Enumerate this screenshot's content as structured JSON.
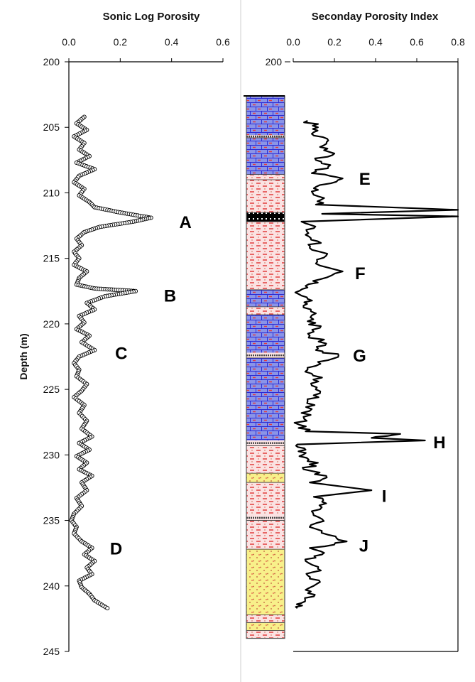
{
  "chart_data": [
    {
      "type": "scatter",
      "title": "Sonic Log Porosity",
      "xlabel": "",
      "ylabel": "Depth (m)",
      "xlim": [
        0,
        0.6
      ],
      "ylim": [
        200,
        245
      ],
      "y_inverted": true,
      "x_ticks": [
        "0.0",
        "0.2",
        "0.4",
        "0.6"
      ],
      "y_ticks": [
        "200",
        "205",
        "210",
        "215",
        "220",
        "225",
        "230",
        "235",
        "240",
        "245"
      ],
      "grid": false,
      "marker": "open-circle",
      "profile": [
        [
          0.06,
          204.2
        ],
        [
          0.03,
          204.7
        ],
        [
          0.07,
          205.2
        ],
        [
          0.02,
          205.7
        ],
        [
          0.06,
          206.2
        ],
        [
          0.04,
          206.7
        ],
        [
          0.08,
          207.2
        ],
        [
          0.03,
          207.7
        ],
        [
          0.1,
          208.2
        ],
        [
          0.04,
          208.7
        ],
        [
          0.02,
          209.2
        ],
        [
          0.06,
          209.7
        ],
        [
          0.04,
          210.2
        ],
        [
          0.08,
          210.7
        ],
        [
          0.1,
          211.1
        ],
        [
          0.2,
          211.5
        ],
        [
          0.32,
          211.9
        ],
        [
          0.25,
          212.2
        ],
        [
          0.12,
          212.6
        ],
        [
          0.06,
          213.0
        ],
        [
          0.03,
          213.5
        ],
        [
          0.05,
          214.0
        ],
        [
          0.02,
          214.5
        ],
        [
          0.04,
          215.0
        ],
        [
          0.02,
          215.5
        ],
        [
          0.07,
          216.0
        ],
        [
          0.04,
          216.5
        ],
        [
          0.03,
          217.0
        ],
        [
          0.1,
          217.3
        ],
        [
          0.26,
          217.5
        ],
        [
          0.14,
          217.9
        ],
        [
          0.07,
          218.4
        ],
        [
          0.1,
          218.9
        ],
        [
          0.04,
          219.4
        ],
        [
          0.06,
          219.9
        ],
        [
          0.03,
          220.4
        ],
        [
          0.08,
          220.9
        ],
        [
          0.05,
          221.4
        ],
        [
          0.1,
          222.0
        ],
        [
          0.04,
          222.5
        ],
        [
          0.02,
          223.0
        ],
        [
          0.04,
          223.5
        ],
        [
          0.03,
          224.0
        ],
        [
          0.07,
          224.6
        ],
        [
          0.05,
          225.1
        ],
        [
          0.02,
          225.6
        ],
        [
          0.06,
          226.2
        ],
        [
          0.04,
          226.8
        ],
        [
          0.07,
          227.4
        ],
        [
          0.05,
          228.0
        ],
        [
          0.09,
          228.6
        ],
        [
          0.04,
          229.1
        ],
        [
          0.08,
          229.6
        ],
        [
          0.03,
          230.1
        ],
        [
          0.07,
          230.6
        ],
        [
          0.04,
          231.1
        ],
        [
          0.09,
          231.6
        ],
        [
          0.05,
          232.1
        ],
        [
          0.07,
          232.7
        ],
        [
          0.03,
          233.3
        ],
        [
          0.05,
          233.9
        ],
        [
          0.02,
          234.5
        ],
        [
          0.01,
          235.0
        ],
        [
          0.03,
          235.5
        ],
        [
          0.02,
          236.0
        ],
        [
          0.05,
          236.6
        ],
        [
          0.09,
          237.1
        ],
        [
          0.06,
          237.6
        ],
        [
          0.1,
          238.1
        ],
        [
          0.07,
          238.6
        ],
        [
          0.09,
          239.1
        ],
        [
          0.04,
          239.6
        ],
        [
          0.05,
          240.1
        ],
        [
          0.08,
          240.6
        ],
        [
          0.1,
          241.1
        ],
        [
          0.15,
          241.7
        ]
      ],
      "annotations": [
        {
          "label": "A",
          "x": 0.43,
          "y": 212.2
        },
        {
          "label": "B",
          "x": 0.37,
          "y": 217.8
        },
        {
          "label": "C",
          "x": 0.18,
          "y": 222.2
        },
        {
          "label": "D",
          "x": 0.16,
          "y": 237.1
        }
      ]
    },
    {
      "type": "line",
      "title": "Seconday Porosity Index",
      "xlabel": "",
      "ylabel": "",
      "xlim": [
        0.0,
        0.8
      ],
      "ylim": [
        200,
        245
      ],
      "y_inverted": true,
      "x_ticks": [
        "0.0",
        "0.2",
        "0.4",
        "0.6",
        "0.8"
      ],
      "y_ticks": [
        "200"
      ],
      "grid": false,
      "profile": [
        [
          0.07,
          204.5
        ],
        [
          0.12,
          205.0
        ],
        [
          0.09,
          205.5
        ],
        [
          0.17,
          206.0
        ],
        [
          0.13,
          206.5
        ],
        [
          0.2,
          207.0
        ],
        [
          0.11,
          207.5
        ],
        [
          0.17,
          208.0
        ],
        [
          0.09,
          208.5
        ],
        [
          0.24,
          208.9
        ],
        [
          0.13,
          209.4
        ],
        [
          0.09,
          209.9
        ],
        [
          0.15,
          210.4
        ],
        [
          0.11,
          210.9
        ],
        [
          0.8,
          211.3
        ],
        [
          0.14,
          211.6
        ],
        [
          0.8,
          211.8
        ],
        [
          0.04,
          212.2
        ],
        [
          0.1,
          212.7
        ],
        [
          0.06,
          213.2
        ],
        [
          0.12,
          213.7
        ],
        [
          0.08,
          214.2
        ],
        [
          0.16,
          214.8
        ],
        [
          0.11,
          215.4
        ],
        [
          0.24,
          216.0
        ],
        [
          0.13,
          216.6
        ],
        [
          0.06,
          217.1
        ],
        [
          0.01,
          217.6
        ],
        [
          0.07,
          218.1
        ],
        [
          0.05,
          218.6
        ],
        [
          0.11,
          219.2
        ],
        [
          0.07,
          219.8
        ],
        [
          0.13,
          220.3
        ],
        [
          0.08,
          220.9
        ],
        [
          0.16,
          221.5
        ],
        [
          0.11,
          222.0
        ],
        [
          0.22,
          222.4
        ],
        [
          0.12,
          222.9
        ],
        [
          0.07,
          223.5
        ],
        [
          0.14,
          224.1
        ],
        [
          0.09,
          224.7
        ],
        [
          0.13,
          225.3
        ],
        [
          0.07,
          225.9
        ],
        [
          0.09,
          226.5
        ],
        [
          0.05,
          227.1
        ],
        [
          0.03,
          227.7
        ],
        [
          0.06,
          228.2
        ],
        [
          0.52,
          228.4
        ],
        [
          0.38,
          228.7
        ],
        [
          0.64,
          228.9
        ],
        [
          0.02,
          229.2
        ],
        [
          0.06,
          229.6
        ],
        [
          0.03,
          230.1
        ],
        [
          0.12,
          230.6
        ],
        [
          0.05,
          231.1
        ],
        [
          0.16,
          231.6
        ],
        [
          0.08,
          232.1
        ],
        [
          0.38,
          232.7
        ],
        [
          0.1,
          233.2
        ],
        [
          0.16,
          233.7
        ],
        [
          0.09,
          234.3
        ],
        [
          0.14,
          234.9
        ],
        [
          0.08,
          235.5
        ],
        [
          0.17,
          236.1
        ],
        [
          0.26,
          236.6
        ],
        [
          0.08,
          237.1
        ],
        [
          0.14,
          237.6
        ],
        [
          0.06,
          238.1
        ],
        [
          0.12,
          238.7
        ],
        [
          0.07,
          239.2
        ],
        [
          0.13,
          239.7
        ],
        [
          0.06,
          240.3
        ],
        [
          0.1,
          240.8
        ],
        [
          0.04,
          241.3
        ],
        [
          0.02,
          241.7
        ]
      ],
      "annotations": [
        {
          "label": "E",
          "x": 0.32,
          "y": 208.9
        },
        {
          "label": "F",
          "x": 0.3,
          "y": 216.1
        },
        {
          "label": "G",
          "x": 0.29,
          "y": 222.4
        },
        {
          "label": "H",
          "x": 0.68,
          "y": 229.0
        },
        {
          "label": "I",
          "x": 0.43,
          "y": 233.1
        },
        {
          "label": "J",
          "x": 0.32,
          "y": 236.9
        }
      ]
    }
  ],
  "lithology_column": {
    "ylim": [
      200,
      245
    ],
    "colors": {
      "limestone": "#8a94e8",
      "shale": "#fbe2e2",
      "sandstone": "#f8f08a",
      "fracture": "#000000",
      "brick_line": "#2b2bd6",
      "dash": "#e23c3c",
      "dot": "#c05a3a",
      "border": "#555555"
    },
    "intervals": [
      {
        "top": 202.6,
        "bottom": 205.6,
        "lith": "limestone"
      },
      {
        "top": 205.6,
        "bottom": 205.8,
        "lith": "boundary"
      },
      {
        "top": 205.8,
        "bottom": 208.6,
        "lith": "limestone"
      },
      {
        "top": 208.6,
        "bottom": 209.0,
        "lith": "shale"
      },
      {
        "top": 209.0,
        "bottom": 211.5,
        "lith": "shale"
      },
      {
        "top": 211.5,
        "bottom": 212.2,
        "lith": "fracture"
      },
      {
        "top": 212.2,
        "bottom": 217.4,
        "lith": "shale"
      },
      {
        "top": 217.4,
        "bottom": 218.7,
        "lith": "limestone"
      },
      {
        "top": 218.7,
        "bottom": 219.3,
        "lith": "shale"
      },
      {
        "top": 219.3,
        "bottom": 222.2,
        "lith": "limestone"
      },
      {
        "top": 222.2,
        "bottom": 222.6,
        "lith": "boundary"
      },
      {
        "top": 222.6,
        "bottom": 228.9,
        "lith": "limestone"
      },
      {
        "top": 228.9,
        "bottom": 229.3,
        "lith": "boundary"
      },
      {
        "top": 229.3,
        "bottom": 231.4,
        "lith": "shale"
      },
      {
        "top": 231.4,
        "bottom": 232.1,
        "lith": "sandstone"
      },
      {
        "top": 232.1,
        "bottom": 234.6,
        "lith": "shale"
      },
      {
        "top": 234.6,
        "bottom": 235.0,
        "lith": "boundary"
      },
      {
        "top": 235.0,
        "bottom": 237.2,
        "lith": "shale"
      },
      {
        "top": 237.2,
        "bottom": 242.2,
        "lith": "sandstone"
      },
      {
        "top": 242.2,
        "bottom": 242.8,
        "lith": "shale"
      },
      {
        "top": 242.8,
        "bottom": 243.4,
        "lith": "sandstone"
      },
      {
        "top": 243.4,
        "bottom": 244.0,
        "lith": "shale"
      }
    ]
  }
}
